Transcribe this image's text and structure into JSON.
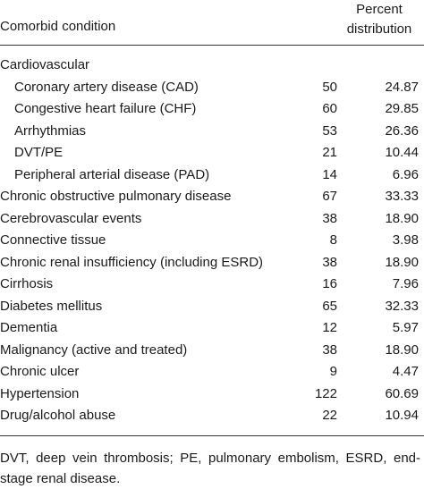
{
  "table": {
    "header": [
      "Comorbid condition",
      "Percent distribution"
    ],
    "rows": [
      {
        "label": "Cardiovascular",
        "rows": [
          {
            "label": "Coronary artery disease (CAD)",
            "count": "50",
            "percent": "24.87"
          },
          {
            "label": "Congestive heart failure (CHF)",
            "count": "60",
            "percent": "29.85"
          },
          {
            "label": "Arrhythmias",
            "count": "53",
            "percent": "26.36"
          },
          {
            "label": "DVT/PE",
            "count": "21",
            "percent": "10.44"
          },
          {
            "label": "Peripheral arterial disease (PAD)",
            "count": "14",
            "percent": "6.96"
          }
        ]
      },
      {
        "label": "Chronic obstructive pulmonary disease",
        "count": "67",
        "percent": "33.33"
      },
      {
        "label": "Cerebrovascular events",
        "count": "38",
        "percent": "18.90"
      },
      {
        "label": "Connective tissue",
        "count": "8",
        "percent": "3.98"
      },
      {
        "label": "Chronic renal insufficiency (including ESRD)",
        "count": "38",
        "percent": "18.90"
      },
      {
        "label": "Cirrhosis",
        "count": "16",
        "percent": "7.96"
      },
      {
        "label": "Diabetes mellitus",
        "count": "65",
        "percent": "32.33"
      },
      {
        "label": "Dementia",
        "count": "12",
        "percent": "5.97"
      },
      {
        "label": "Malignancy (active and treated)",
        "count": "38",
        "percent": "18.90"
      },
      {
        "label": "Chronic ulcer",
        "count": "9",
        "percent": "4.47"
      },
      {
        "label": "Hypertension",
        "count": "122",
        "percent": "60.69"
      },
      {
        "label": "Drug/alcohol abuse",
        "count": "22",
        "percent": "10.94"
      }
    ]
  },
  "footnote": "DVT, deep vein thrombosis; PE, pulmonary embolism, ESRD, end-stage renal disease."
}
